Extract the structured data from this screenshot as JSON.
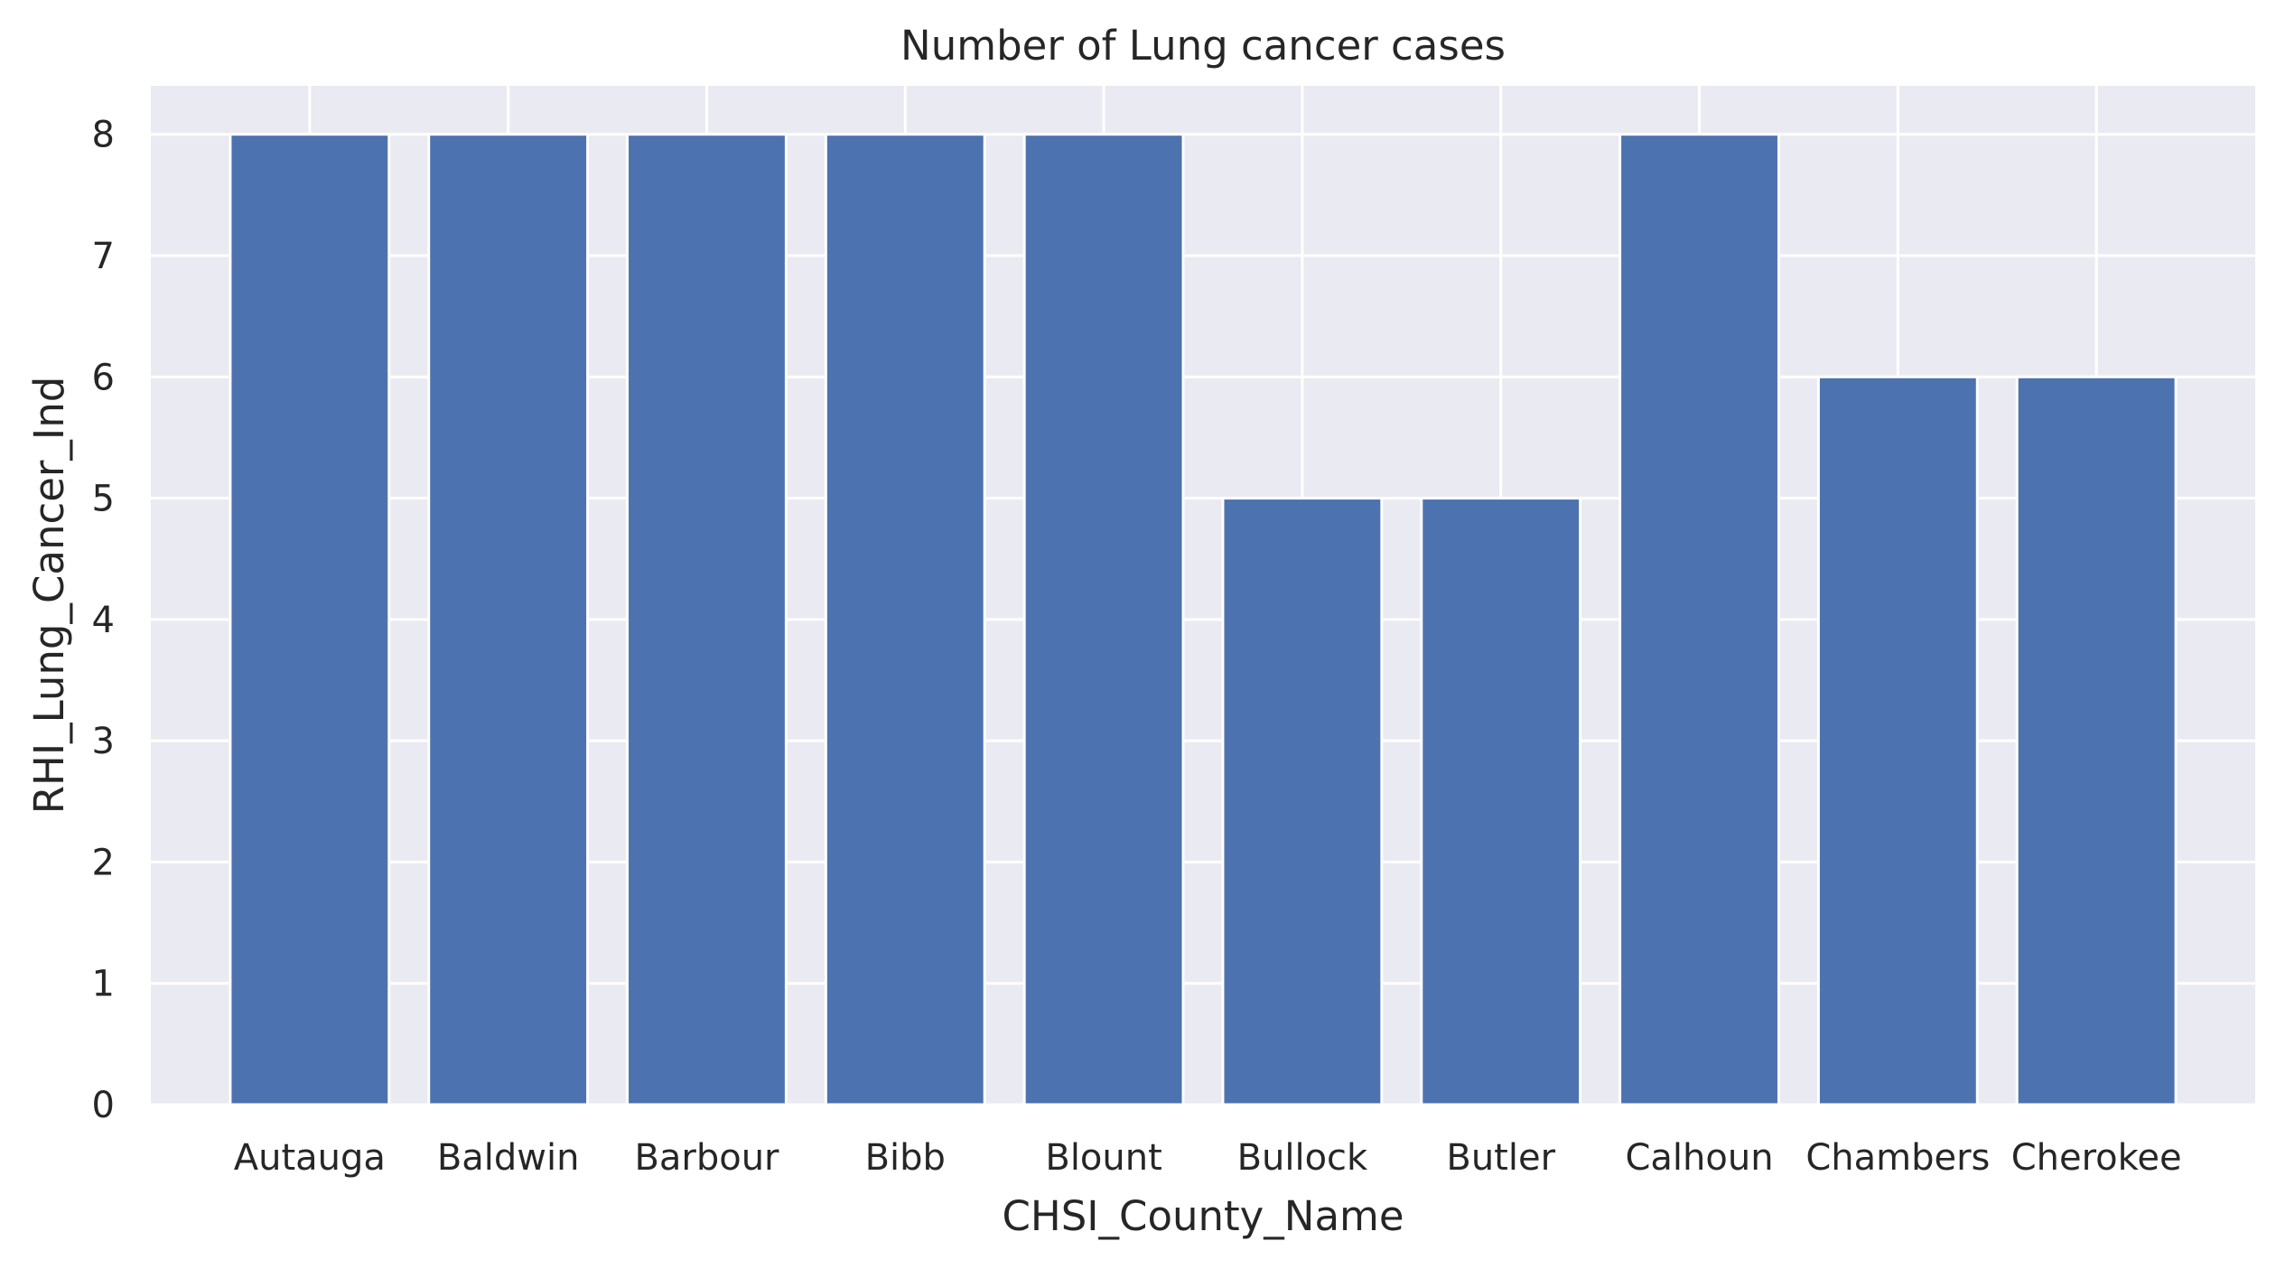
{
  "chart_data": {
    "type": "bar",
    "title": "Number of Lung cancer cases",
    "xlabel": "CHSI_County_Name",
    "ylabel": "RHI_Lung_Cancer_Ind",
    "categories": [
      "Autauga",
      "Baldwin",
      "Barbour",
      "Bibb",
      "Blount",
      "Bullock",
      "Butler",
      "Calhoun",
      "Chambers",
      "Cherokee"
    ],
    "values": [
      8,
      8,
      8,
      8,
      8,
      5,
      5,
      8,
      6,
      6
    ],
    "ylim": [
      0,
      8.4
    ],
    "yticks": [
      0,
      1,
      2,
      3,
      4,
      5,
      6,
      7,
      8
    ],
    "grid": true,
    "colors": {
      "bar": "#4c72b0",
      "plot_background": "#eaeaf2",
      "grid": "#ffffff",
      "text": "#262626"
    }
  }
}
